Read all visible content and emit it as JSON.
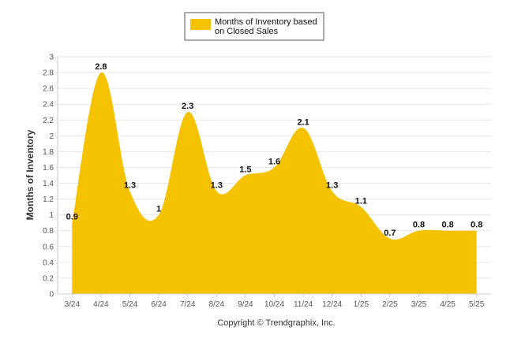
{
  "chart_data": {
    "type": "area",
    "categories": [
      "3/24",
      "4/24",
      "5/24",
      "6/24",
      "7/24",
      "8/24",
      "9/24",
      "10/24",
      "11/24",
      "12/24",
      "1/25",
      "2/25",
      "3/25",
      "4/25",
      "5/25"
    ],
    "series": [
      {
        "name": "Months of Inventory based on Closed Sales",
        "values": [
          0.9,
          2.8,
          1.3,
          1.0,
          2.3,
          1.3,
          1.5,
          1.6,
          2.1,
          1.3,
          1.1,
          0.7,
          0.8,
          0.8,
          0.8
        ],
        "value_labels": [
          "0.9",
          "2.8",
          "1.3",
          "1",
          "2.3",
          "1.3",
          "1.5",
          "1.6",
          "2.1",
          "1.3",
          "1.1",
          "0.7",
          "0.8",
          "0.8",
          "0.8"
        ]
      }
    ],
    "legend_lines": [
      "Months of Inventory based",
      "on Closed Sales"
    ],
    "ylabel": "Months of Inventory",
    "ylim": [
      0,
      3
    ],
    "yticks": [
      "0",
      "0.2",
      "0.4",
      "0.6",
      "0.8",
      "1",
      "1.2",
      "1.4",
      "1.6",
      "1.8",
      "2",
      "2.2",
      "2.4",
      "2.6",
      "2.8",
      "3"
    ],
    "grid": true,
    "legend_position": "top-center",
    "color": "#f5c200"
  },
  "footer": "Copyright © Trendgraphix, Inc."
}
